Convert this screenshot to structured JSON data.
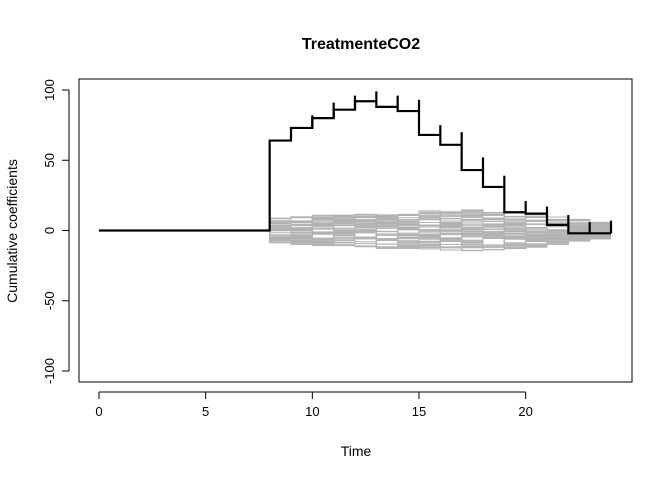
{
  "chart_data": {
    "type": "line",
    "title": "TreatmenteCO2",
    "xlabel": "Time",
    "ylabel": "Cumulative coefficients",
    "xlim": [
      0,
      24
    ],
    "ylim": [
      -100,
      100
    ],
    "xticks": [
      0,
      5,
      10,
      15,
      20
    ],
    "yticks": [
      -100,
      -50,
      0,
      50,
      100
    ],
    "grid": false,
    "legend": "none",
    "step": true,
    "series": [
      {
        "role": "observed",
        "color": "#000000",
        "x": [
          0,
          8,
          9,
          10,
          11,
          12,
          13,
          14,
          15,
          16,
          17,
          18,
          19,
          20,
          21,
          22,
          23,
          24
        ],
        "y": [
          0,
          64,
          73,
          80,
          86,
          92,
          88,
          85,
          68,
          61,
          43,
          31,
          13,
          12,
          4,
          -2,
          -2,
          -2
        ],
        "jumps": [
          {
            "x": 10,
            "y": 82
          },
          {
            "x": 11,
            "y": 91
          },
          {
            "x": 12,
            "y": 96
          },
          {
            "x": 13,
            "y": 99
          },
          {
            "x": 14,
            "y": 96
          },
          {
            "x": 15,
            "y": 93
          },
          {
            "x": 16,
            "y": 75
          },
          {
            "x": 17,
            "y": 70
          },
          {
            "x": 18,
            "y": 52
          },
          {
            "x": 19,
            "y": 39
          },
          {
            "x": 20,
            "y": 21
          },
          {
            "x": 21,
            "y": 17
          },
          {
            "x": 22,
            "y": 11
          },
          {
            "x": 23,
            "y": 6
          },
          {
            "x": 24,
            "y": 7
          }
        ]
      },
      {
        "role": "simulated",
        "color": "#b3b3b3",
        "count": 50,
        "x_start": 8,
        "x_end": 24,
        "envelope_upper": [
          9,
          10,
          11,
          11,
          12,
          13,
          13,
          14,
          14,
          15,
          14,
          13,
          12,
          10,
          8,
          6
        ],
        "envelope_lower": [
          -9,
          -10,
          -11,
          -11,
          -12,
          -13,
          -13,
          -14,
          -14,
          -15,
          -14,
          -13,
          -12,
          -10,
          -8,
          -6
        ]
      }
    ]
  }
}
